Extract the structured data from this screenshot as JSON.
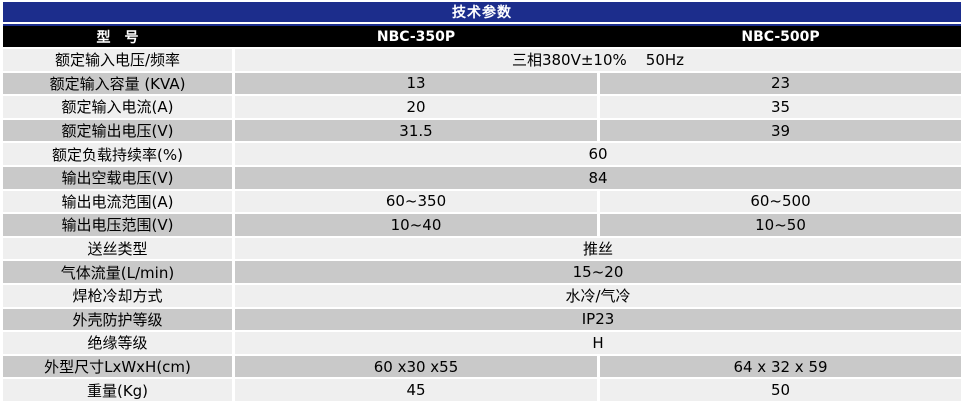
{
  "title": "技术参数",
  "colors": {
    "accent_blue": "#1c2d8c",
    "header_black": "#000000",
    "row_light": "#efefef",
    "row_dark": "#c9c9c9"
  },
  "header": {
    "model_label": "型　号",
    "models": [
      "NBC-350P",
      "NBC-500P"
    ]
  },
  "rows": [
    {
      "label": "额定输入电压/频率",
      "span": "三相380V±10%    50Hz"
    },
    {
      "label": "额定输入容量 (KVA)",
      "values": [
        "13",
        "23"
      ]
    },
    {
      "label": "额定输入电流(A)",
      "values": [
        "20",
        "35"
      ]
    },
    {
      "label": "额定输出电压(V)",
      "values": [
        "31.5",
        "39"
      ]
    },
    {
      "label": "额定负载持续率(%)",
      "span": "60"
    },
    {
      "label": "输出空载电压(V)",
      "span": "84"
    },
    {
      "label": "输出电流范围(A)",
      "values": [
        "60~350",
        "60~500"
      ]
    },
    {
      "label": "输出电压范围(V)",
      "values": [
        "10~40",
        "10~50"
      ]
    },
    {
      "label": "送丝类型",
      "span": "推丝"
    },
    {
      "label": "气体流量(L/min)",
      "span": "15~20"
    },
    {
      "label": "焊枪冷却方式",
      "span": "水冷/气冷"
    },
    {
      "label": "外壳防护等级",
      "span": "IP23"
    },
    {
      "label": "绝缘等级",
      "span": "H"
    },
    {
      "label": "外型尺寸LxWxH(cm)",
      "values": [
        "60 x30 x55",
        "64 x 32 x 59"
      ]
    },
    {
      "label": "重量(Kg)",
      "values": [
        "45",
        "50"
      ]
    }
  ]
}
